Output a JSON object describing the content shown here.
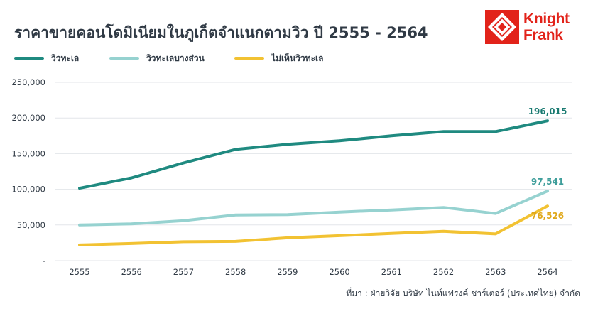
{
  "title": "ราคาขายคอนโดมิเนียมในภูเก็ตจำแนกตามวิว ปี 2555 - 2564",
  "brand": {
    "line1": "Knight",
    "line2": "Frank",
    "color": "#e2231a"
  },
  "source": "ที่มา : ฝ่ายวิจัย บริษัท ไนท์แฟรงค์ ชาร์เตอร์ (ประเทศไทย) จำกัด",
  "chart_data": {
    "type": "line",
    "x": [
      2555,
      2556,
      2557,
      2558,
      2559,
      2560,
      2561,
      2562,
      2563,
      2564
    ],
    "ylim": [
      0,
      250000
    ],
    "yticks": [
      "-",
      "50,000",
      "100,000",
      "150,000",
      "200,000",
      "250,000"
    ],
    "ytick_values": [
      0,
      50000,
      100000,
      150000,
      200000,
      250000
    ],
    "grid": true,
    "legend_position": "top-left",
    "series": [
      {
        "name": "วิวทะเล",
        "color": "#1f8a80",
        "values": [
          101500,
          116000,
          137000,
          156000,
          163000,
          168000,
          175000,
          181000,
          181000,
          196015
        ],
        "end_label": "196,015"
      },
      {
        "name": "วิวทะเลบางส่วน",
        "color": "#96d2d0",
        "values": [
          50000,
          51500,
          56000,
          64000,
          64500,
          68000,
          71000,
          74500,
          66000,
          97541
        ],
        "end_label": "97,541"
      },
      {
        "name": "ไม่เห็นวิวทะเล",
        "color": "#f2c232",
        "values": [
          22000,
          24000,
          26500,
          27000,
          32000,
          35000,
          38000,
          41000,
          37500,
          76526
        ],
        "end_label": "76,526"
      }
    ]
  }
}
